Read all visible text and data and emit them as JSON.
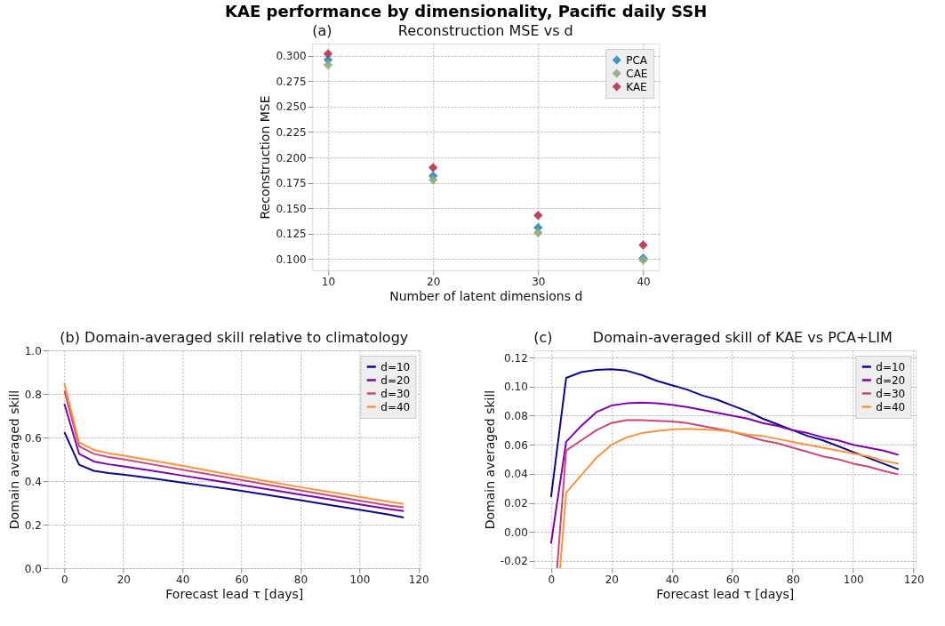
{
  "chart_data": [
    {
      "type": "scatter",
      "title": "KAE performance by dimensionality, Pacific daily SSH",
      "subtitle": "Reconstruction MSE vs d",
      "annotations": [
        "(a)"
      ],
      "xlabel": "Number of latent dimensions d",
      "ylabel": "Reconstruction MSE",
      "x": [
        10,
        20,
        30,
        40
      ],
      "xlim": [
        8.5,
        41.5
      ],
      "xticks": [
        10,
        20,
        30,
        40
      ],
      "ylim": [
        0.089,
        0.312
      ],
      "yticks": [
        {
          "value": 0.1,
          "label": "0.100"
        },
        0.125,
        {
          "value": 0.15,
          "label": "0.150"
        },
        0.175,
        {
          "value": 0.2,
          "label": "0.200"
        },
        0.225,
        {
          "value": 0.25,
          "label": "0.250"
        },
        0.275,
        {
          "value": 0.3,
          "label": "0.300"
        }
      ],
      "marker": "diamond",
      "grid": true,
      "legend": "top right",
      "series": [
        {
          "name": "PCA",
          "color": "#2e8bc0",
          "values": [
            0.296,
            0.182,
            0.131,
            0.101
          ]
        },
        {
          "name": "CAE",
          "color": "#8faa7c",
          "values": [
            0.291,
            0.178,
            0.126,
            0.099
          ]
        },
        {
          "name": "KAE",
          "color": "#b8324f",
          "values": [
            0.302,
            0.19,
            0.143,
            0.114
          ]
        }
      ]
    },
    {
      "type": "line",
      "title": "(b) Domain-averaged skill relative to climatology",
      "xlabel": "Forecast lead τ [days]",
      "ylabel": "Domain averaged skill",
      "xlim": [
        -5.75,
        120.75
      ],
      "xticks": [
        0,
        20,
        40,
        60,
        80,
        100,
        120
      ],
      "ylim": [
        0,
        1
      ],
      "yticks": [
        {
          "value": 0,
          "label": "0.0"
        },
        0.2,
        0.4,
        0.6,
        0.8,
        {
          "value": 1,
          "label": "1.0"
        }
      ],
      "grid": true,
      "legend": "top right",
      "x": [
        0,
        5,
        10,
        15,
        20,
        30,
        40,
        50,
        60,
        70,
        80,
        90,
        100,
        110,
        115
      ],
      "series": [
        {
          "name": "d=10",
          "color": "#0d0887",
          "values": [
            0.625,
            0.475,
            0.447,
            0.437,
            0.43,
            0.412,
            0.393,
            0.374,
            0.355,
            0.334,
            0.312,
            0.29,
            0.268,
            0.246,
            0.233
          ]
        },
        {
          "name": "d=20",
          "color": "#7e03a8",
          "values": [
            0.755,
            0.525,
            0.49,
            0.477,
            0.467,
            0.447,
            0.425,
            0.404,
            0.382,
            0.36,
            0.338,
            0.316,
            0.293,
            0.271,
            0.262
          ]
        },
        {
          "name": "d=30",
          "color": "#cc4778",
          "values": [
            0.815,
            0.56,
            0.525,
            0.51,
            0.5,
            0.476,
            0.452,
            0.429,
            0.405,
            0.381,
            0.357,
            0.334,
            0.31,
            0.288,
            0.28
          ]
        },
        {
          "name": "d=40",
          "color": "#f89540",
          "values": [
            0.85,
            0.578,
            0.543,
            0.528,
            0.517,
            0.494,
            0.47,
            0.445,
            0.42,
            0.396,
            0.372,
            0.35,
            0.328,
            0.305,
            0.295
          ]
        }
      ]
    },
    {
      "type": "line",
      "title": "Domain-averaged skill of KAE vs PCA+LIM",
      "annotations": [
        "(c)"
      ],
      "xlabel": "Forecast lead τ [days]",
      "ylabel": "Domain averaged skill",
      "xlim": [
        -5.75,
        120.75
      ],
      "xticks": [
        0,
        20,
        40,
        60,
        80,
        100,
        120
      ],
      "ylim": [
        -0.025,
        0.125
      ],
      "yticks": [
        -0.02,
        {
          "value": 0,
          "label": "0.00"
        },
        0.02,
        0.04,
        0.06,
        0.08,
        {
          "value": 0.1,
          "label": "0.10"
        },
        0.12
      ],
      "grid": true,
      "legend": "top right",
      "x": [
        0,
        5,
        10,
        15,
        20,
        25,
        30,
        35,
        40,
        45,
        50,
        55,
        60,
        65,
        70,
        75,
        80,
        85,
        90,
        95,
        100,
        105,
        110,
        115
      ],
      "series": [
        {
          "name": "d=10",
          "color": "#0d0887",
          "values": [
            0.024,
            0.106,
            0.11,
            0.1115,
            0.112,
            0.111,
            0.108,
            0.104,
            0.101,
            0.098,
            0.094,
            0.091,
            0.087,
            0.083,
            0.078,
            0.074,
            0.07,
            0.066,
            0.063,
            0.059,
            0.055,
            0.051,
            0.047,
            0.043
          ]
        },
        {
          "name": "d=20",
          "color": "#7e03a8",
          "values": [
            -0.008,
            0.062,
            0.073,
            0.0825,
            0.087,
            0.0885,
            0.089,
            0.0885,
            0.0875,
            0.086,
            0.084,
            0.082,
            0.08,
            0.078,
            0.075,
            0.073,
            0.07,
            0.068,
            0.065,
            0.063,
            0.06,
            0.058,
            0.056,
            0.053
          ]
        },
        {
          "name": "d=30",
          "color": "#cc4778",
          "x": [
            2,
            5,
            10,
            15,
            20,
            25,
            30,
            35,
            40,
            45,
            50,
            55,
            60,
            65,
            70,
            75,
            80,
            85,
            90,
            95,
            100,
            105,
            110,
            115
          ],
          "values": [
            -0.025,
            0.056,
            0.063,
            0.07,
            0.075,
            0.077,
            0.077,
            0.0765,
            0.076,
            0.075,
            0.073,
            0.071,
            0.069,
            0.066,
            0.063,
            0.061,
            0.058,
            0.055,
            0.052,
            0.05,
            0.047,
            0.045,
            0.042,
            0.0395
          ]
        },
        {
          "name": "d=40",
          "color": "#f89540",
          "x": [
            3,
            5,
            10,
            15,
            20,
            25,
            30,
            35,
            40,
            45,
            50,
            55,
            60,
            65,
            70,
            75,
            80,
            85,
            90,
            95,
            100,
            105,
            110,
            115
          ],
          "values": [
            -0.025,
            0.027,
            0.039,
            0.051,
            0.06,
            0.065,
            0.068,
            0.0695,
            0.0705,
            0.071,
            0.0705,
            0.07,
            0.069,
            0.067,
            0.066,
            0.064,
            0.062,
            0.06,
            0.058,
            0.056,
            0.054,
            0.052,
            0.049,
            0.047
          ]
        }
      ]
    }
  ]
}
